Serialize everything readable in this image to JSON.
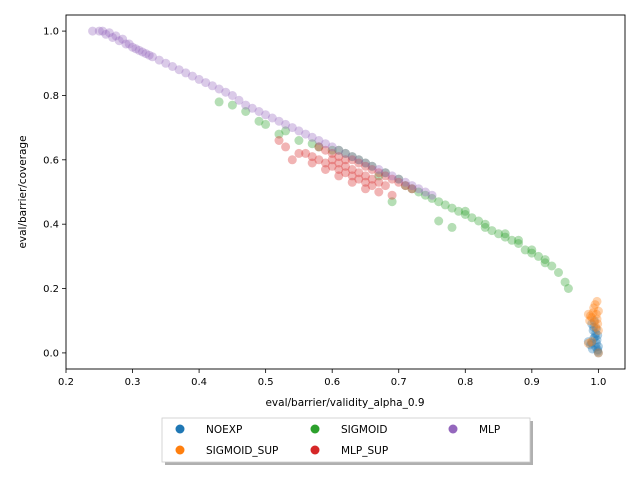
{
  "chart_data": {
    "type": "scatter",
    "title": "",
    "xlabel": "eval/barrier/validity_alpha_0.9",
    "ylabel": "eval/barrier/coverage",
    "xlim": [
      0.2,
      1.04
    ],
    "ylim": [
      -0.05,
      1.05
    ],
    "xticks": [
      "0.2",
      "0.3",
      "0.4",
      "0.5",
      "0.6",
      "0.7",
      "0.8",
      "0.9",
      "1.0"
    ],
    "yticks": [
      "0.0",
      "0.2",
      "0.4",
      "0.6",
      "0.8",
      "1.0"
    ],
    "grid": false,
    "legend_position": "bottom-center, below plot",
    "series": [
      {
        "name": "NOEXP",
        "color": "#1f77b4",
        "points": [
          [
            0.99,
            0.09
          ],
          [
            0.992,
            0.07
          ],
          [
            0.995,
            0.05
          ],
          [
            0.997,
            0.03
          ],
          [
            0.999,
            0.01
          ],
          [
            1.0,
            0.0
          ],
          [
            0.993,
            0.08
          ],
          [
            0.996,
            0.06
          ],
          [
            0.998,
            0.04
          ],
          [
            0.985,
            0.035
          ],
          [
            0.99,
            0.03
          ],
          [
            1.0,
            0.02
          ],
          [
            0.994,
            0.1
          ],
          [
            0.997,
            0.075
          ],
          [
            0.999,
            0.055
          ],
          [
            0.988,
            0.025
          ],
          [
            0.991,
            0.012
          ],
          [
            0.996,
            0.018
          ],
          [
            0.999,
            0.005
          ],
          [
            0.993,
            0.045
          ]
        ]
      },
      {
        "name": "SIGMOID_SUP",
        "color": "#ff7f0e",
        "points": [
          [
            0.985,
            0.12
          ],
          [
            0.99,
            0.11
          ],
          [
            0.995,
            0.15
          ],
          [
            0.998,
            0.16
          ],
          [
            1.0,
            0.13
          ],
          [
            0.987,
            0.1
          ],
          [
            0.993,
            0.14
          ],
          [
            0.997,
            0.12
          ],
          [
            0.999,
            0.09
          ],
          [
            1.0,
            0.0
          ],
          [
            0.99,
            0.035
          ],
          [
            0.985,
            0.03
          ],
          [
            0.996,
            0.08
          ],
          [
            0.992,
            0.125
          ],
          [
            0.998,
            0.105
          ],
          [
            1.0,
            0.07
          ],
          [
            0.988,
            0.115
          ],
          [
            0.994,
            0.095
          ]
        ]
      },
      {
        "name": "SIGMOID",
        "color": "#2ca02c",
        "points": [
          [
            0.43,
            0.78
          ],
          [
            0.45,
            0.77
          ],
          [
            0.47,
            0.75
          ],
          [
            0.49,
            0.72
          ],
          [
            0.52,
            0.68
          ],
          [
            0.55,
            0.66
          ],
          [
            0.58,
            0.64
          ],
          [
            0.6,
            0.63
          ],
          [
            0.62,
            0.62
          ],
          [
            0.64,
            0.6
          ],
          [
            0.66,
            0.58
          ],
          [
            0.68,
            0.56
          ],
          [
            0.7,
            0.54
          ],
          [
            0.71,
            0.52
          ],
          [
            0.73,
            0.5
          ],
          [
            0.74,
            0.49
          ],
          [
            0.76,
            0.47
          ],
          [
            0.77,
            0.46
          ],
          [
            0.78,
            0.45
          ],
          [
            0.79,
            0.44
          ],
          [
            0.8,
            0.43
          ],
          [
            0.81,
            0.42
          ],
          [
            0.82,
            0.41
          ],
          [
            0.83,
            0.39
          ],
          [
            0.84,
            0.38
          ],
          [
            0.85,
            0.37
          ],
          [
            0.86,
            0.36
          ],
          [
            0.87,
            0.35
          ],
          [
            0.88,
            0.34
          ],
          [
            0.89,
            0.32
          ],
          [
            0.9,
            0.31
          ],
          [
            0.91,
            0.3
          ],
          [
            0.92,
            0.28
          ],
          [
            0.93,
            0.27
          ],
          [
            0.94,
            0.25
          ],
          [
            0.95,
            0.22
          ],
          [
            0.955,
            0.2
          ],
          [
            0.76,
            0.41
          ],
          [
            0.78,
            0.39
          ],
          [
            0.69,
            0.47
          ],
          [
            0.67,
            0.55
          ],
          [
            0.72,
            0.51
          ],
          [
            0.75,
            0.48
          ],
          [
            0.8,
            0.44
          ],
          [
            0.83,
            0.4
          ],
          [
            0.86,
            0.37
          ],
          [
            0.88,
            0.35
          ],
          [
            0.9,
            0.32
          ],
          [
            0.92,
            0.29
          ],
          [
            0.65,
            0.59
          ],
          [
            0.63,
            0.61
          ],
          [
            0.61,
            0.63
          ],
          [
            0.57,
            0.65
          ],
          [
            0.53,
            0.69
          ],
          [
            0.5,
            0.71
          ]
        ]
      },
      {
        "name": "MLP_SUP",
        "color": "#d62728",
        "points": [
          [
            0.56,
            0.62
          ],
          [
            0.57,
            0.61
          ],
          [
            0.58,
            0.6
          ],
          [
            0.59,
            0.59
          ],
          [
            0.6,
            0.58
          ],
          [
            0.61,
            0.57
          ],
          [
            0.62,
            0.56
          ],
          [
            0.63,
            0.55
          ],
          [
            0.64,
            0.54
          ],
          [
            0.65,
            0.53
          ],
          [
            0.66,
            0.52
          ],
          [
            0.6,
            0.62
          ],
          [
            0.61,
            0.61
          ],
          [
            0.62,
            0.6
          ],
          [
            0.63,
            0.6
          ],
          [
            0.64,
            0.59
          ],
          [
            0.65,
            0.58
          ],
          [
            0.66,
            0.57
          ],
          [
            0.67,
            0.56
          ],
          [
            0.68,
            0.55
          ],
          [
            0.69,
            0.54
          ],
          [
            0.7,
            0.53
          ],
          [
            0.58,
            0.64
          ],
          [
            0.59,
            0.63
          ],
          [
            0.6,
            0.6
          ],
          [
            0.61,
            0.59
          ],
          [
            0.62,
            0.58
          ],
          [
            0.63,
            0.57
          ],
          [
            0.64,
            0.56
          ],
          [
            0.65,
            0.55
          ],
          [
            0.66,
            0.54
          ],
          [
            0.67,
            0.53
          ],
          [
            0.55,
            0.62
          ],
          [
            0.53,
            0.64
          ],
          [
            0.52,
            0.66
          ],
          [
            0.54,
            0.6
          ],
          [
            0.57,
            0.59
          ],
          [
            0.59,
            0.57
          ],
          [
            0.61,
            0.55
          ],
          [
            0.63,
            0.53
          ],
          [
            0.65,
            0.51
          ],
          [
            0.67,
            0.5
          ],
          [
            0.69,
            0.49
          ],
          [
            0.68,
            0.52
          ],
          [
            0.71,
            0.52
          ],
          [
            0.72,
            0.51
          ]
        ]
      },
      {
        "name": "MLP",
        "color": "#9467bd",
        "points": [
          [
            0.24,
            1.0
          ],
          [
            0.25,
            1.0
          ],
          [
            0.26,
            0.99
          ],
          [
            0.27,
            0.98
          ],
          [
            0.28,
            0.97
          ],
          [
            0.29,
            0.96
          ],
          [
            0.3,
            0.95
          ],
          [
            0.31,
            0.94
          ],
          [
            0.32,
            0.93
          ],
          [
            0.33,
            0.92
          ],
          [
            0.34,
            0.91
          ],
          [
            0.35,
            0.9
          ],
          [
            0.36,
            0.89
          ],
          [
            0.37,
            0.88
          ],
          [
            0.38,
            0.87
          ],
          [
            0.39,
            0.86
          ],
          [
            0.4,
            0.85
          ],
          [
            0.41,
            0.84
          ],
          [
            0.42,
            0.83
          ],
          [
            0.43,
            0.82
          ],
          [
            0.44,
            0.81
          ],
          [
            0.45,
            0.8
          ],
          [
            0.46,
            0.785
          ],
          [
            0.47,
            0.77
          ],
          [
            0.48,
            0.76
          ],
          [
            0.49,
            0.75
          ],
          [
            0.5,
            0.74
          ],
          [
            0.51,
            0.73
          ],
          [
            0.52,
            0.72
          ],
          [
            0.53,
            0.71
          ],
          [
            0.54,
            0.7
          ],
          [
            0.55,
            0.69
          ],
          [
            0.56,
            0.68
          ],
          [
            0.57,
            0.67
          ],
          [
            0.58,
            0.66
          ],
          [
            0.59,
            0.65
          ],
          [
            0.6,
            0.64
          ],
          [
            0.61,
            0.63
          ],
          [
            0.62,
            0.62
          ],
          [
            0.63,
            0.61
          ],
          [
            0.64,
            0.6
          ],
          [
            0.65,
            0.59
          ],
          [
            0.66,
            0.58
          ],
          [
            0.67,
            0.57
          ],
          [
            0.68,
            0.56
          ],
          [
            0.69,
            0.55
          ],
          [
            0.7,
            0.54
          ],
          [
            0.71,
            0.53
          ],
          [
            0.72,
            0.52
          ],
          [
            0.73,
            0.51
          ],
          [
            0.74,
            0.5
          ],
          [
            0.75,
            0.49
          ],
          [
            0.255,
            1.0
          ],
          [
            0.265,
            0.995
          ],
          [
            0.275,
            0.985
          ],
          [
            0.285,
            0.975
          ],
          [
            0.295,
            0.96
          ],
          [
            0.305,
            0.945
          ],
          [
            0.315,
            0.935
          ],
          [
            0.325,
            0.925
          ]
        ]
      }
    ]
  }
}
